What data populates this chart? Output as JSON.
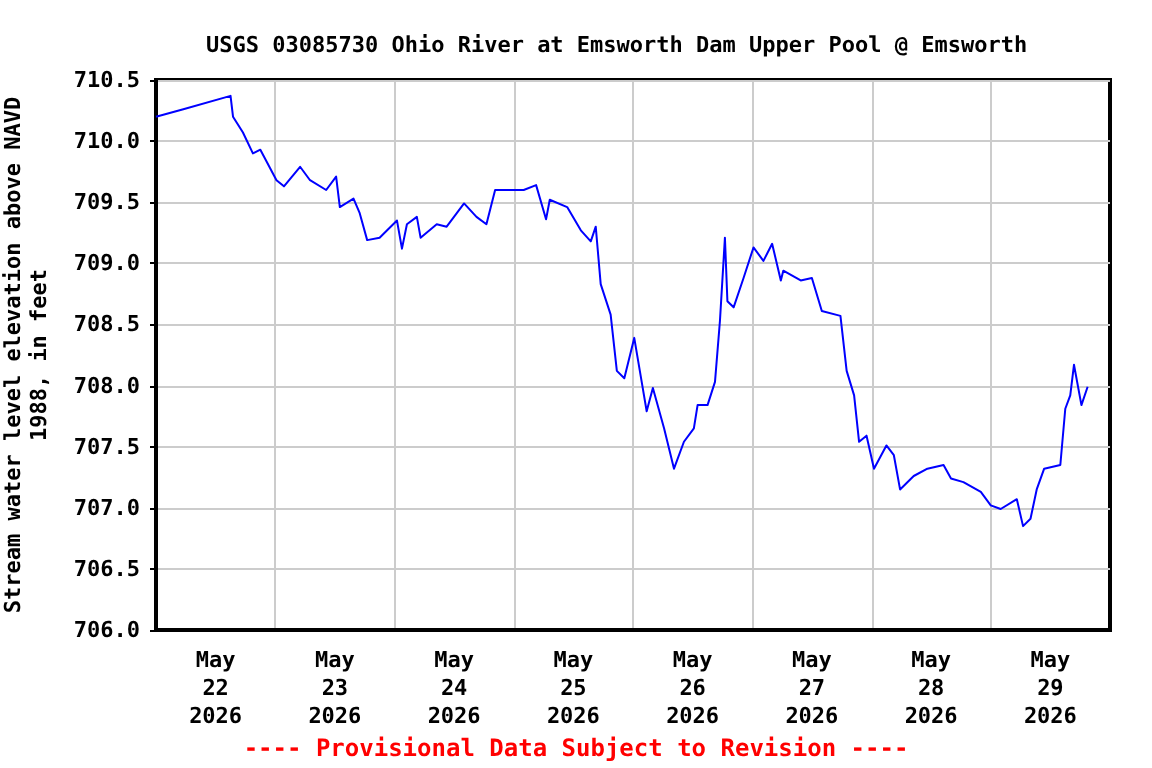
{
  "chart_data": {
    "type": "line",
    "title": "USGS 03085730 Ohio River at Emsworth Dam Upper Pool @ Emsworth",
    "ylabel": "Stream water level elevation above NAVD 1988, in feet",
    "annotations": [
      "---- Provisional Data Subject to Revision ----"
    ],
    "x": [
      "2026-05-22T00:00",
      "2026-05-22T05:30",
      "2026-05-22T15:00",
      "2026-05-22T15:30",
      "2026-05-22T17:30",
      "2026-05-22T19:30",
      "2026-05-22T21:00",
      "2026-05-23T00:15",
      "2026-05-23T01:45",
      "2026-05-23T05:00",
      "2026-05-23T07:00",
      "2026-05-23T10:15",
      "2026-05-23T12:15",
      "2026-05-23T13:00",
      "2026-05-23T15:45",
      "2026-05-23T17:00",
      "2026-05-23T18:30",
      "2026-05-23T21:00",
      "2026-05-24T00:30",
      "2026-05-24T01:30",
      "2026-05-24T02:30",
      "2026-05-24T04:30",
      "2026-05-24T05:15",
      "2026-05-24T08:30",
      "2026-05-24T10:30",
      "2026-05-24T14:00",
      "2026-05-24T16:30",
      "2026-05-24T18:30",
      "2026-05-24T20:15",
      "2026-05-24T23:15",
      "2026-05-25T02:00",
      "2026-05-25T04:30",
      "2026-05-25T06:30",
      "2026-05-25T07:15",
      "2026-05-25T10:45",
      "2026-05-25T13:30",
      "2026-05-25T15:30",
      "2026-05-25T16:30",
      "2026-05-25T17:30",
      "2026-05-25T19:30",
      "2026-05-25T20:45",
      "2026-05-25T22:15",
      "2026-05-26T00:15",
      "2026-05-26T01:45",
      "2026-05-26T02:45",
      "2026-05-26T04:00",
      "2026-05-26T06:15",
      "2026-05-26T08:15",
      "2026-05-26T10:15",
      "2026-05-26T12:15",
      "2026-05-26T13:00",
      "2026-05-26T15:00",
      "2026-05-26T16:30",
      "2026-05-26T17:30",
      "2026-05-26T18:30",
      "2026-05-26T19:00",
      "2026-05-26T20:15",
      "2026-05-26T22:15",
      "2026-05-27T00:15",
      "2026-05-27T02:15",
      "2026-05-27T04:00",
      "2026-05-27T05:45",
      "2026-05-27T06:15",
      "2026-05-27T09:45",
      "2026-05-27T12:00",
      "2026-05-27T14:00",
      "2026-05-27T17:45",
      "2026-05-27T19:00",
      "2026-05-27T20:30",
      "2026-05-27T21:30",
      "2026-05-27T23:00",
      "2026-05-28T00:30",
      "2026-05-28T03:00",
      "2026-05-28T04:30",
      "2026-05-28T05:45",
      "2026-05-28T08:30",
      "2026-05-28T11:15",
      "2026-05-28T14:30",
      "2026-05-28T16:00",
      "2026-05-28T18:30",
      "2026-05-28T22:00",
      "2026-05-29T00:00",
      "2026-05-29T02:00",
      "2026-05-29T05:15",
      "2026-05-29T06:30",
      "2026-05-29T08:00",
      "2026-05-29T09:15",
      "2026-05-29T10:45",
      "2026-05-29T14:00",
      "2026-05-29T15:00",
      "2026-05-29T16:00",
      "2026-05-29T16:45",
      "2026-05-29T18:15",
      "2026-05-29T19:30"
    ],
    "series": [
      {
        "color": "#0000ff",
        "values": [
          710.2,
          710.26,
          710.37,
          710.2,
          710.07,
          709.9,
          709.93,
          709.68,
          709.63,
          709.79,
          709.68,
          709.6,
          709.71,
          709.46,
          709.53,
          709.41,
          709.19,
          709.21,
          709.35,
          709.12,
          709.32,
          709.38,
          709.21,
          709.32,
          709.3,
          709.49,
          709.38,
          709.32,
          709.6,
          709.6,
          709.6,
          709.64,
          709.36,
          709.52,
          709.46,
          709.27,
          709.18,
          709.3,
          708.83,
          708.58,
          708.12,
          708.06,
          708.39,
          708.03,
          707.79,
          707.98,
          707.65,
          707.32,
          707.54,
          707.65,
          707.84,
          707.84,
          708.03,
          708.53,
          709.21,
          708.69,
          708.64,
          708.88,
          709.13,
          709.02,
          709.16,
          708.86,
          708.94,
          708.86,
          708.88,
          708.61,
          708.57,
          708.12,
          707.92,
          707.54,
          707.59,
          707.32,
          707.51,
          707.43,
          707.15,
          707.26,
          707.32,
          707.35,
          707.24,
          707.21,
          707.13,
          707.02,
          706.99,
          707.07,
          706.85,
          706.91,
          707.15,
          707.32,
          707.35,
          707.81,
          707.92,
          708.17,
          707.84,
          707.99
        ]
      }
    ],
    "xlim": [
      "2026-05-22T00:00",
      "2026-05-30T00:00"
    ],
    "xticks": [
      {
        "value": "2026-05-22T12:00",
        "label": "May\n22\n2026"
      },
      {
        "value": "2026-05-23T00:00",
        "label": null
      },
      {
        "value": "2026-05-23T12:00",
        "label": "May\n23\n2026"
      },
      {
        "value": "2026-05-24T00:00",
        "label": null
      },
      {
        "value": "2026-05-24T12:00",
        "label": "May\n24\n2026"
      },
      {
        "value": "2026-05-25T00:00",
        "label": null
      },
      {
        "value": "2026-05-25T12:00",
        "label": "May\n25\n2026"
      },
      {
        "value": "2026-05-26T00:00",
        "label": null
      },
      {
        "value": "2026-05-26T12:00",
        "label": "May\n26\n2026"
      },
      {
        "value": "2026-05-27T00:00",
        "label": null
      },
      {
        "value": "2026-05-27T12:00",
        "label": "May\n27\n2026"
      },
      {
        "value": "2026-05-28T00:00",
        "label": null
      },
      {
        "value": "2026-05-28T12:00",
        "label": "May\n28\n2026"
      },
      {
        "value": "2026-05-29T00:00",
        "label": null
      },
      {
        "value": "2026-05-29T12:00",
        "label": "May\n29\n2026"
      }
    ],
    "ylim": [
      706.0,
      710.5
    ],
    "yticks": [
      {
        "value": 706.0,
        "label": "706.0"
      },
      {
        "value": 706.5,
        "label": "706.5"
      },
      {
        "value": 707.0,
        "label": "707.0"
      },
      {
        "value": 707.5,
        "label": "707.5"
      },
      {
        "value": 708.0,
        "label": "708.0"
      },
      {
        "value": 708.5,
        "label": "708.5"
      },
      {
        "value": 709.0,
        "label": "709.0"
      },
      {
        "value": 709.5,
        "label": "709.5"
      },
      {
        "value": 710.0,
        "label": "710.0"
      },
      {
        "value": 710.5,
        "label": "710.5"
      }
    ],
    "grid": true,
    "marker": "none",
    "line_style": "solid"
  }
}
